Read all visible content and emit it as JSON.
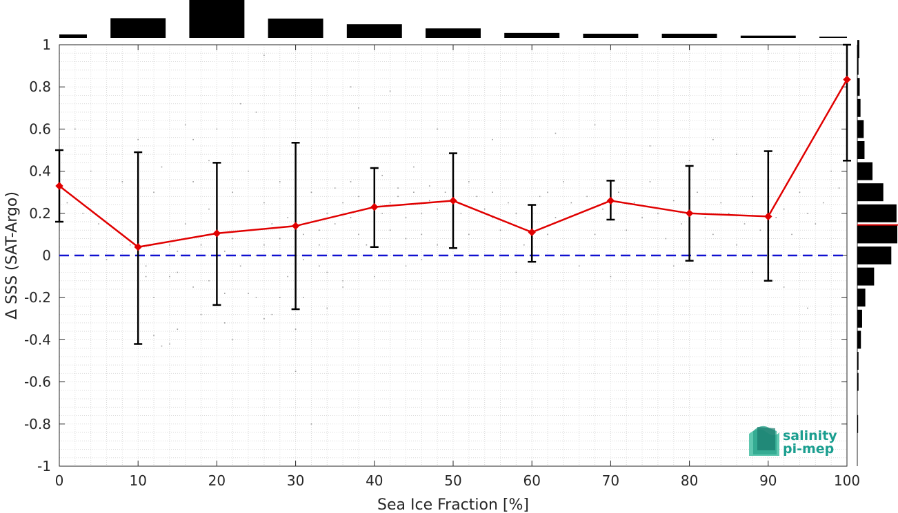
{
  "chart_data": {
    "type": "line",
    "xlabel": "Sea Ice Fraction [%]",
    "ylabel": "Δ SSS (SAT-Argo)",
    "xlim": [
      0,
      100
    ],
    "ylim": [
      -1,
      1
    ],
    "x_ticks": [
      "0",
      "10",
      "20",
      "30",
      "40",
      "50",
      "60",
      "70",
      "80",
      "90",
      "100"
    ],
    "y_ticks": [
      "1",
      "0.8",
      "0.6",
      "0.4",
      "0.2",
      "0",
      "-0.2",
      "-0.4",
      "-0.6",
      "-0.8",
      "-1"
    ],
    "grid": "minor dotted",
    "series": [
      {
        "kind": "mean_with_errorbars",
        "color": "#e00000",
        "x": [
          0,
          10,
          20,
          30,
          40,
          50,
          60,
          70,
          80,
          90,
          100
        ],
        "y": [
          0.33,
          0.04,
          0.105,
          0.14,
          0.23,
          0.26,
          0.11,
          0.26,
          0.2,
          0.185,
          0.835
        ],
        "err_low": [
          0.16,
          -0.42,
          -0.235,
          -0.255,
          0.04,
          0.035,
          -0.03,
          0.17,
          -0.025,
          -0.12,
          0.45
        ],
        "err_high": [
          0.5,
          0.49,
          0.44,
          0.535,
          0.415,
          0.485,
          0.24,
          0.355,
          0.425,
          0.495,
          1.0
        ]
      },
      {
        "kind": "reference_line",
        "color": "#1010d0",
        "style": "dashed",
        "y": 0
      }
    ],
    "top_histogram": {
      "bin_edges": [
        0,
        3.5,
        6.5,
        13.5,
        16.5,
        23.5,
        26.5,
        33.5,
        36.5,
        43.5,
        46.5,
        53.5,
        56.5,
        63.5,
        66.5,
        73.5,
        76.5,
        83.5,
        86.5,
        93.5,
        96.5,
        100
      ],
      "bins": [
        {
          "x0": 0,
          "x1": 3.5,
          "value": 0.09
        },
        {
          "x0": 6.5,
          "x1": 13.5,
          "value": 0.52
        },
        {
          "x0": 16.5,
          "x1": 23.5,
          "value": 1.0
        },
        {
          "x0": 26.5,
          "x1": 33.5,
          "value": 0.51
        },
        {
          "x0": 36.5,
          "x1": 43.5,
          "value": 0.36
        },
        {
          "x0": 46.5,
          "x1": 53.5,
          "value": 0.25
        },
        {
          "x0": 56.5,
          "x1": 63.5,
          "value": 0.13
        },
        {
          "x0": 66.5,
          "x1": 73.5,
          "value": 0.11
        },
        {
          "x0": 76.5,
          "x1": 83.5,
          "value": 0.11
        },
        {
          "x0": 86.5,
          "x1": 93.5,
          "value": 0.06
        },
        {
          "x0": 96.5,
          "x1": 100,
          "value": 0.03
        }
      ]
    },
    "right_histogram": {
      "median": 0.145,
      "median_color": "#e00000",
      "bins": [
        {
          "y": 0.98,
          "value": 0.05
        },
        {
          "y": 0.9,
          "value": 0.03
        },
        {
          "y": 0.8,
          "value": 0.06
        },
        {
          "y": 0.7,
          "value": 0.08
        },
        {
          "y": 0.6,
          "value": 0.16
        },
        {
          "y": 0.5,
          "value": 0.18
        },
        {
          "y": 0.4,
          "value": 0.38
        },
        {
          "y": 0.3,
          "value": 0.65
        },
        {
          "y": 0.2,
          "value": 0.98
        },
        {
          "y": 0.1,
          "value": 1.0
        },
        {
          "y": 0.0,
          "value": 0.85
        },
        {
          "y": -0.1,
          "value": 0.42
        },
        {
          "y": -0.2,
          "value": 0.2
        },
        {
          "y": -0.3,
          "value": 0.12
        },
        {
          "y": -0.4,
          "value": 0.09
        },
        {
          "y": -0.5,
          "value": 0.03
        },
        {
          "y": -0.6,
          "value": 0.03
        },
        {
          "y": -0.8,
          "value": 0.02
        }
      ]
    },
    "scatter": {
      "color": "#9a9a9a",
      "points": [
        [
          1,
          0.25
        ],
        [
          3,
          0.2
        ],
        [
          5,
          0.15
        ],
        [
          6,
          -0.02
        ],
        [
          8,
          0.1
        ],
        [
          9,
          0.05
        ],
        [
          11,
          -0.05
        ],
        [
          11,
          -0.1
        ],
        [
          12,
          0.3
        ],
        [
          12,
          -0.2
        ],
        [
          13,
          0.42
        ],
        [
          13,
          -0.43
        ],
        [
          14,
          -0.1
        ],
        [
          14,
          0.05
        ],
        [
          15,
          0.02
        ],
        [
          15,
          -0.08
        ],
        [
          16,
          0.62
        ],
        [
          16,
          0.15
        ],
        [
          17,
          -0.15
        ],
        [
          17,
          0.35
        ],
        [
          18,
          0.05
        ],
        [
          19,
          -0.12
        ],
        [
          19,
          0.22
        ],
        [
          20,
          0.6
        ],
        [
          20,
          -0.1
        ],
        [
          21,
          0.02
        ],
        [
          21,
          -0.18
        ],
        [
          22,
          0.3
        ],
        [
          22,
          0.08
        ],
        [
          23,
          0.72
        ],
        [
          23,
          -0.05
        ],
        [
          24,
          0.4
        ],
        [
          24,
          0.12
        ],
        [
          25,
          0.0
        ],
        [
          25,
          -0.2
        ],
        [
          26,
          0.25
        ],
        [
          26,
          0.05
        ],
        [
          27,
          0.15
        ],
        [
          27,
          -0.28
        ],
        [
          28,
          0.35
        ],
        [
          28,
          0.08
        ],
        [
          29,
          -0.1
        ],
        [
          29,
          0.18
        ],
        [
          30,
          0.45
        ],
        [
          30,
          -0.55
        ],
        [
          31,
          0.1
        ],
        [
          31,
          -0.02
        ],
        [
          32,
          0.3
        ],
        [
          32,
          -0.8
        ],
        [
          33,
          0.12
        ],
        [
          33,
          0.05
        ],
        [
          34,
          0.2
        ],
        [
          34,
          -0.08
        ],
        [
          35,
          0.32
        ],
        [
          35,
          0.15
        ],
        [
          36,
          0.25
        ],
        [
          36,
          -0.12
        ],
        [
          37,
          0.18
        ],
        [
          37,
          0.35
        ],
        [
          38,
          0.1
        ],
        [
          38,
          0.28
        ],
        [
          39,
          0.22
        ],
        [
          39,
          0.05
        ],
        [
          40,
          0.3
        ],
        [
          40,
          0.15
        ],
        [
          41,
          0.2
        ],
        [
          41,
          0.38
        ],
        [
          42,
          0.12
        ],
        [
          42,
          0.25
        ],
        [
          43,
          0.28
        ],
        [
          43,
          0.32
        ],
        [
          44,
          0.18
        ],
        [
          44,
          0.08
        ],
        [
          45,
          0.3
        ],
        [
          45,
          0.42
        ],
        [
          46,
          0.2
        ],
        [
          46,
          0.1
        ],
        [
          47,
          0.26
        ],
        [
          47,
          0.33
        ],
        [
          48,
          0.22
        ],
        [
          48,
          0.05
        ],
        [
          49,
          0.3
        ],
        [
          50,
          0.15
        ],
        [
          50,
          0.25
        ],
        [
          51,
          0.2
        ],
        [
          52,
          0.35
        ],
        [
          52,
          0.1
        ],
        [
          53,
          0.28
        ],
        [
          54,
          0.22
        ],
        [
          55,
          0.18
        ],
        [
          55,
          0.3
        ],
        [
          56,
          0.12
        ],
        [
          57,
          0.25
        ],
        [
          58,
          0.2
        ],
        [
          59,
          0.05
        ],
        [
          60,
          0.15
        ],
        [
          61,
          0.28
        ],
        [
          62,
          0.3
        ],
        [
          62,
          0.1
        ],
        [
          63,
          0.18
        ],
        [
          64,
          0.35
        ],
        [
          65,
          0.25
        ],
        [
          66,
          0.2
        ],
        [
          67,
          0.28
        ],
        [
          68,
          0.1
        ],
        [
          69,
          0.22
        ],
        [
          71,
          0.3
        ],
        [
          72,
          0.12
        ],
        [
          73,
          0.25
        ],
        [
          74,
          0.18
        ],
        [
          75,
          0.35
        ],
        [
          76,
          0.2
        ],
        [
          77,
          0.08
        ],
        [
          78,
          0.26
        ],
        [
          79,
          0.15
        ],
        [
          81,
          0.3
        ],
        [
          82,
          0.18
        ],
        [
          83,
          0.1
        ],
        [
          84,
          0.25
        ],
        [
          85,
          0.2
        ],
        [
          86,
          0.05
        ],
        [
          87,
          0.15
        ],
        [
          88,
          0.28
        ],
        [
          89,
          0.12
        ],
        [
          91,
          0.18
        ],
        [
          92,
          0.22
        ],
        [
          93,
          0.1
        ],
        [
          94,
          0.3
        ],
        [
          95,
          0.2
        ],
        [
          96,
          0.15
        ],
        [
          97,
          0.25
        ],
        [
          98,
          0.4
        ],
        [
          99,
          0.32
        ],
        [
          38,
          0.7
        ],
        [
          37,
          0.8
        ],
        [
          42,
          0.78
        ],
        [
          48,
          0.6
        ],
        [
          55,
          0.55
        ],
        [
          63,
          0.58
        ],
        [
          68,
          0.62
        ],
        [
          75,
          0.52
        ],
        [
          83,
          0.55
        ],
        [
          86,
          0.48
        ],
        [
          80,
          0.45
        ],
        [
          92,
          -0.15
        ],
        [
          95,
          -0.25
        ],
        [
          88,
          -0.08
        ],
        [
          78,
          -0.05
        ],
        [
          70,
          -0.1
        ],
        [
          66,
          -0.05
        ],
        [
          58,
          -0.08
        ],
        [
          52,
          0.0
        ],
        [
          46,
          -0.02
        ],
        [
          44,
          -0.05
        ],
        [
          40,
          -0.1
        ],
        [
          36,
          -0.15
        ],
        [
          34,
          -0.25
        ],
        [
          28,
          -0.2
        ],
        [
          26,
          -0.3
        ],
        [
          24,
          -0.18
        ],
        [
          21,
          -0.32
        ],
        [
          18,
          -0.28
        ],
        [
          15,
          -0.35
        ],
        [
          12,
          -0.38
        ],
        [
          14,
          -0.42
        ],
        [
          26,
          0.95
        ],
        [
          25,
          0.68
        ],
        [
          10,
          0.55
        ],
        [
          8,
          0.35
        ],
        [
          4,
          0.4
        ],
        [
          2,
          0.6
        ],
        [
          33,
          -0.05
        ],
        [
          30,
          -0.35
        ],
        [
          31,
          -0.2
        ],
        [
          22,
          -0.4
        ],
        [
          19,
          0.45
        ],
        [
          17,
          0.55
        ]
      ]
    },
    "logo": {
      "line1": "salinity",
      "line2": "pi-mep"
    },
    "colors": {
      "background": "#ffffff",
      "axis": "#262626",
      "grid": "#d9d9d9",
      "bars": "#000000",
      "mean_line": "#e00000",
      "zero_line": "#1010d0",
      "logo": "#1a9e8f"
    }
  }
}
